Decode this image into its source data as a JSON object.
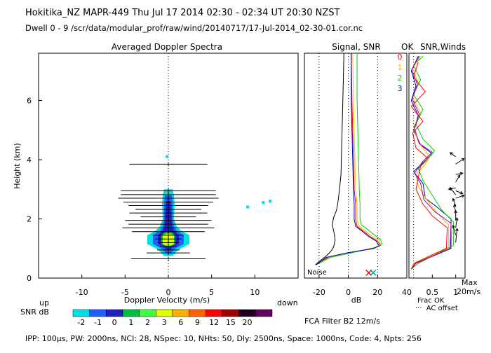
{
  "header": {
    "line1": "Hokitika_NZ   MAPR-449   Thu Jul 17 2014 02:30 - 02:34 UT 20:30 NZST",
    "line2": "Dwell   0  -  9    /scr/data/modular_prof/raw/wind/20140717/17-Jul-2014_02-30-01.cor.nc"
  },
  "panels": {
    "spectra_title": "Averaged Doppler Spectra",
    "signal_title": "Signal, SNR",
    "ok_title": "OK",
    "snrwinds_title": "SNR,Winds"
  },
  "labels": {
    "ylabel": "Height (km)",
    "xlabel": "Doppler Velocity (m/s)",
    "up": "up",
    "down": "down",
    "snr_db": "SNR dB",
    "noise": "Noise",
    "db_label": "dB",
    "frac_ok": "Frac OK",
    "ac_offset": "AC offset",
    "max": "Max",
    "max_speed": "20m/s",
    "fca": "FCA Filter B2 12m/s",
    "footer": "IPP: 100μs,  PW: 2000ns,  NCI:  28,  NSpec: 10, NHts: 50,  Dly: 2500ns,  Space: 1000ns,  Code: 4,  Npts: 256"
  },
  "colorbar": {
    "labels": [
      "-2",
      "-1",
      "0",
      "1",
      "2",
      "3",
      "6",
      "9",
      "12",
      "15",
      "20"
    ],
    "colors": [
      "#00e0e0",
      "#2060ff",
      "#2020c0",
      "#00c040",
      "#40ff40",
      "#e0ff00",
      "#ffb000",
      "#ff6000",
      "#ff0000",
      "#a00000",
      "#200020",
      "#600060"
    ]
  },
  "beam_legend": [
    {
      "label": "0",
      "color": "#ff0000"
    },
    {
      "label": "1",
      "color": "#f0c000"
    },
    {
      "label": "2",
      "color": "#00d000"
    },
    {
      "label": "3",
      "color": "#0000c0"
    }
  ],
  "chart_data": [
    {
      "type": "heatmap",
      "title": "Averaged Doppler Spectra",
      "xlabel": "Doppler Velocity (m/s)",
      "ylabel": "Height (km)",
      "xlim": [
        -15,
        15
      ],
      "ylim": [
        0,
        7.6
      ],
      "xticks": [
        -10,
        -5,
        0,
        5,
        10
      ],
      "yticks": [
        0,
        2,
        4,
        6
      ],
      "width_bars": [
        {
          "h": 3.85,
          "hw": 4.5
        },
        {
          "h": 2.95,
          "hw": 5.5
        },
        {
          "h": 2.82,
          "hw": 5.5
        },
        {
          "h": 2.7,
          "hw": 5.8
        },
        {
          "h": 2.57,
          "hw": 5.2
        },
        {
          "h": 2.45,
          "hw": 4.6
        },
        {
          "h": 2.32,
          "hw": 3.8
        },
        {
          "h": 2.2,
          "hw": 4.5
        },
        {
          "h": 2.07,
          "hw": 3.2
        },
        {
          "h": 1.95,
          "hw": 5.0
        },
        {
          "h": 1.82,
          "hw": 4.6
        },
        {
          "h": 1.7,
          "hw": 5.3
        },
        {
          "h": 1.57,
          "hw": 4.2
        },
        {
          "h": 1.45,
          "hw": 1.8
        },
        {
          "h": 1.32,
          "hw": 1.5
        },
        {
          "h": 1.2,
          "hw": 1.2
        },
        {
          "h": 1.07,
          "hw": 1.0
        },
        {
          "h": 0.95,
          "hw": 1.3
        },
        {
          "h": 0.85,
          "hw": 2.5
        },
        {
          "h": 0.65,
          "hw": 4.3
        }
      ]
    },
    {
      "type": "line",
      "title": "Signal, SNR",
      "xlabel": "dB",
      "xlim": [
        -30,
        40
      ],
      "ylim": [
        0,
        7.6
      ],
      "xticks": [
        -20,
        0,
        20,
        40
      ],
      "noise_lines": [
        -20,
        0,
        20
      ],
      "series": [
        {
          "color": "#000000",
          "points": [
            [
              -22.5,
              0.45
            ],
            [
              -20,
              0.55
            ],
            [
              -15,
              0.75
            ],
            [
              -12,
              0.9
            ],
            [
              -10,
              1.05
            ],
            [
              -9,
              1.3
            ],
            [
              -10,
              1.6
            ],
            [
              -11,
              1.8
            ],
            [
              -10,
              2.05
            ],
            [
              -8,
              2.3
            ],
            [
              -7,
              2.6
            ],
            [
              -6,
              3.0
            ],
            [
              -5,
              3.5
            ],
            [
              -4.5,
              4.5
            ],
            [
              -4,
              5.5
            ],
            [
              -3.5,
              6.5
            ],
            [
              -3,
              7.6
            ]
          ]
        },
        {
          "color": "#ff0000",
          "points": [
            [
              -22,
              0.45
            ],
            [
              -14,
              0.7
            ],
            [
              0,
              0.85
            ],
            [
              18,
              1.0
            ],
            [
              22,
              1.1
            ],
            [
              20,
              1.25
            ],
            [
              15,
              1.4
            ],
            [
              10,
              1.6
            ],
            [
              6,
              1.75
            ],
            [
              5,
              2.0
            ],
            [
              5,
              2.5
            ],
            [
              4,
              3.0
            ],
            [
              3.5,
              4.0
            ],
            [
              3,
              5.0
            ],
            [
              2.5,
              6.0
            ],
            [
              2,
              7.6
            ]
          ]
        },
        {
          "color": "#f0c000",
          "points": [
            [
              -22,
              0.45
            ],
            [
              -13,
              0.7
            ],
            [
              1,
              0.85
            ],
            [
              19,
              1.02
            ],
            [
              22,
              1.12
            ],
            [
              21,
              1.27
            ],
            [
              16,
              1.42
            ],
            [
              11,
              1.62
            ],
            [
              7,
              1.78
            ],
            [
              6,
              2.0
            ],
            [
              6,
              2.5
            ],
            [
              5,
              3.0
            ],
            [
              4.5,
              4.0
            ],
            [
              4,
              5.0
            ],
            [
              3.5,
              6.0
            ],
            [
              3,
              7.6
            ]
          ]
        },
        {
          "color": "#00d000",
          "points": [
            [
              -22,
              0.45
            ],
            [
              -12,
              0.7
            ],
            [
              2,
              0.85
            ],
            [
              20,
              1.05
            ],
            [
              23,
              1.15
            ],
            [
              22,
              1.3
            ],
            [
              18,
              1.45
            ],
            [
              13,
              1.65
            ],
            [
              9,
              1.8
            ],
            [
              8,
              2.0
            ],
            [
              8,
              2.5
            ],
            [
              7.5,
              3.0
            ],
            [
              7,
              4.0
            ],
            [
              6.5,
              5.0
            ],
            [
              6,
              6.0
            ],
            [
              6,
              7.6
            ]
          ]
        },
        {
          "color": "#0000c0",
          "points": [
            [
              -22,
              0.45
            ],
            [
              -15,
              0.7
            ],
            [
              -1,
              0.85
            ],
            [
              17,
              1.0
            ],
            [
              21,
              1.1
            ],
            [
              19,
              1.25
            ],
            [
              14,
              1.4
            ],
            [
              9,
              1.6
            ],
            [
              5,
              1.75
            ],
            [
              4,
              2.0
            ],
            [
              4,
              2.5
            ],
            [
              3.5,
              3.0
            ],
            [
              3,
              4.0
            ],
            [
              2.5,
              5.0
            ],
            [
              2,
              6.0
            ],
            [
              2,
              7.6
            ]
          ]
        }
      ],
      "markers": [
        {
          "x": 14,
          "h": 0.18,
          "color": "#ff0000"
        },
        {
          "x": 17,
          "h": 0.18,
          "color": "#00a0a0"
        }
      ]
    },
    {
      "type": "line",
      "title": "SNR,Winds",
      "xlabel": "Frac OK",
      "xlim": [
        0,
        1.2
      ],
      "ylim": [
        0,
        7.6
      ],
      "xticks": [
        0.5,
        1
      ],
      "series": [
        {
          "color": "#0000c0",
          "points": [
            [
              0.05,
              0.3
            ],
            [
              0.15,
              0.5
            ],
            [
              0.9,
              1.0
            ],
            [
              0.9,
              2.0
            ],
            [
              0.6,
              2.4
            ],
            [
              0.35,
              2.7
            ],
            [
              0.3,
              3.2
            ],
            [
              0.1,
              3.6
            ],
            [
              0.3,
              3.9
            ],
            [
              0.5,
              4.2
            ],
            [
              0.25,
              4.5
            ],
            [
              0.1,
              5.0
            ],
            [
              0.2,
              5.5
            ],
            [
              0.05,
              6.0
            ],
            [
              0.15,
              6.5
            ],
            [
              0.05,
              7.0
            ],
            [
              0.2,
              7.5
            ]
          ]
        },
        {
          "color": "#00d000",
          "points": [
            [
              0.05,
              0.3
            ],
            [
              0.2,
              0.5
            ],
            [
              0.95,
              1.1
            ],
            [
              0.95,
              1.9
            ],
            [
              0.7,
              2.3
            ],
            [
              0.5,
              2.8
            ],
            [
              0.3,
              3.3
            ],
            [
              0.2,
              3.7
            ],
            [
              0.4,
              4.0
            ],
            [
              0.55,
              4.3
            ],
            [
              0.3,
              4.7
            ],
            [
              0.15,
              5.2
            ],
            [
              0.3,
              5.7
            ],
            [
              0.1,
              6.2
            ],
            [
              0.25,
              6.7
            ],
            [
              0.1,
              7.2
            ],
            [
              0.3,
              7.5
            ]
          ]
        },
        {
          "color": "#f0c000",
          "points": [
            [
              0.05,
              0.3
            ],
            [
              0.1,
              0.5
            ],
            [
              0.85,
              1.05
            ],
            [
              0.85,
              1.8
            ],
            [
              0.6,
              2.2
            ],
            [
              0.4,
              2.6
            ],
            [
              0.2,
              3.1
            ],
            [
              0.15,
              3.5
            ],
            [
              0.35,
              3.85
            ],
            [
              0.45,
              4.1
            ],
            [
              0.2,
              4.6
            ],
            [
              0.1,
              5.1
            ],
            [
              0.25,
              5.6
            ],
            [
              0.08,
              6.1
            ],
            [
              0.2,
              6.6
            ],
            [
              0.08,
              7.1
            ],
            [
              0.25,
              7.5
            ]
          ]
        },
        {
          "color": "#ff0000",
          "points": [
            [
              0.05,
              0.3
            ],
            [
              0.12,
              0.5
            ],
            [
              0.8,
              1.0
            ],
            [
              0.82,
              1.7
            ],
            [
              0.5,
              2.1
            ],
            [
              0.3,
              2.5
            ],
            [
              0.15,
              3.0
            ],
            [
              0.2,
              3.4
            ],
            [
              0.25,
              3.8
            ],
            [
              0.4,
              4.05
            ],
            [
              0.15,
              4.4
            ],
            [
              0.08,
              4.9
            ],
            [
              0.3,
              5.3
            ],
            [
              0.05,
              5.8
            ],
            [
              0.35,
              6.3
            ],
            [
              0.1,
              6.8
            ],
            [
              0.2,
              7.3
            ]
          ]
        },
        {
          "color": "#a000a0",
          "points": [
            [
              0.05,
              0.3
            ],
            [
              0.15,
              0.5
            ],
            [
              0.88,
              1.0
            ],
            [
              0.9,
              1.85
            ],
            [
              0.55,
              2.25
            ],
            [
              0.32,
              2.65
            ],
            [
              0.25,
              3.2
            ],
            [
              0.12,
              3.55
            ],
            [
              0.3,
              3.95
            ],
            [
              0.5,
              4.25
            ],
            [
              0.22,
              4.55
            ],
            [
              0.12,
              5.05
            ],
            [
              0.22,
              5.55
            ],
            [
              0.07,
              6.05
            ],
            [
              0.18,
              6.55
            ],
            [
              0.06,
              7.05
            ],
            [
              0.22,
              7.5
            ]
          ]
        }
      ],
      "wind_barbs": [
        {
          "h": 1.2,
          "dx": 0.05,
          "dy": 0.5
        },
        {
          "h": 1.45,
          "dx": -0.1,
          "dy": 0.35
        },
        {
          "h": 1.7,
          "dx": 0.05,
          "dy": 0.35
        },
        {
          "h": 1.95,
          "dx": 0.0,
          "dy": 0.35
        },
        {
          "h": 2.2,
          "dx": -0.05,
          "dy": 0.3
        },
        {
          "h": 2.45,
          "dx": -0.1,
          "dy": 0.25
        },
        {
          "h": 2.7,
          "dx": 0.3,
          "dy": 0.1
        },
        {
          "h": 2.82,
          "dx": -0.2,
          "dy": 0.25
        },
        {
          "h": 2.95,
          "dx": 0.25,
          "dy": -0.1
        },
        {
          "h": 3.05,
          "dx": -0.25,
          "dy": -0.05
        },
        {
          "h": 3.25,
          "dx": 0.15,
          "dy": 0.25
        },
        {
          "h": 3.5,
          "dx": 0.25,
          "dy": 0.05
        },
        {
          "h": 3.85,
          "dx": 0.3,
          "dy": 0.2
        },
        {
          "h": 4.1,
          "dx": -0.2,
          "dy": 0.15
        }
      ]
    }
  ]
}
